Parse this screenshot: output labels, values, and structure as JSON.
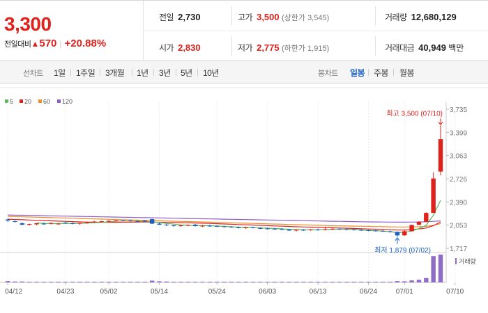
{
  "quote": {
    "price": "3,300",
    "change_label": "전일대비",
    "change_arrow": "▲",
    "change_value": "570",
    "change_pct": "+20.88%",
    "prev_close_label": "전일",
    "prev_close": "2,730",
    "open_label": "시가",
    "open": "2,830",
    "high_label": "고가",
    "high": "3,500",
    "upper_limit": "(상한가 3,545)",
    "low_label": "저가",
    "low": "2,775",
    "lower_limit": "(하한가 1,915)",
    "volume_label": "거래량",
    "volume": "12,680,129",
    "amount_label": "거래대금",
    "amount": "40,949",
    "amount_unit": "백만"
  },
  "tabs": {
    "period_label": "선차트",
    "periods": [
      "1일",
      "1주일",
      "3개월",
      "1년",
      "3년",
      "5년",
      "10년"
    ],
    "candle_label": "봉차트",
    "candles": [
      "일봉",
      "주봉",
      "월봉"
    ],
    "active_candle": "일봉"
  },
  "colors": {
    "up": "#e0221c",
    "down": "#1a5fc2",
    "ma5": "#5cb85c",
    "ma20": "#e0221c",
    "ma60": "#f08c2c",
    "ma120": "#8e5cc7",
    "volume": "#8e6cc7"
  },
  "chart_data": {
    "type": "candlestick",
    "legend": [
      "5",
      "20",
      "60",
      "120"
    ],
    "y_ticks": [
      "3,735",
      "3,399",
      "3,063",
      "2,726",
      "2,390",
      "2,053",
      "1,717"
    ],
    "y_tick_values": [
      3735,
      3399,
      3063,
      2726,
      2390,
      2053,
      1717
    ],
    "x_ticks": [
      {
        "label": "04/12",
        "index": 0
      },
      {
        "label": "04/23",
        "index": 8
      },
      {
        "label": "05/02",
        "index": 14
      },
      {
        "label": "05/14",
        "index": 21
      },
      {
        "label": "05/24",
        "index": 29
      },
      {
        "label": "06/03",
        "index": 36
      },
      {
        "label": "06/13",
        "index": 43
      },
      {
        "label": "06/24",
        "index": 50
      },
      {
        "label": "07/01",
        "index": 55
      },
      {
        "label": "07/10",
        "index": 62
      }
    ],
    "high_note": "최고 3,500 (07/10)",
    "low_note": "최저 1,879 (07/02)",
    "volume_label": "거래량",
    "candles": [
      {
        "o": 2135,
        "h": 2150,
        "l": 2100,
        "c": 2120
      },
      {
        "o": 2110,
        "h": 2125,
        "l": 2090,
        "c": 2100
      },
      {
        "o": 2080,
        "h": 2095,
        "l": 2050,
        "c": 2060
      },
      {
        "o": 2060,
        "h": 2075,
        "l": 2045,
        "c": 2070
      },
      {
        "o": 2065,
        "h": 2085,
        "l": 2050,
        "c": 2080
      },
      {
        "o": 2075,
        "h": 2090,
        "l": 2060,
        "c": 2070
      },
      {
        "o": 2080,
        "h": 2095,
        "l": 2065,
        "c": 2085
      },
      {
        "o": 2070,
        "h": 2085,
        "l": 2060,
        "c": 2075
      },
      {
        "o": 2090,
        "h": 2105,
        "l": 2075,
        "c": 2080
      },
      {
        "o": 2080,
        "h": 2095,
        "l": 2065,
        "c": 2075
      },
      {
        "o": 2075,
        "h": 2090,
        "l": 2060,
        "c": 2085
      },
      {
        "o": 2090,
        "h": 2105,
        "l": 2075,
        "c": 2095
      },
      {
        "o": 2095,
        "h": 2115,
        "l": 2085,
        "c": 2105
      },
      {
        "o": 2100,
        "h": 2115,
        "l": 2090,
        "c": 2110
      },
      {
        "o": 2110,
        "h": 2125,
        "l": 2100,
        "c": 2115
      },
      {
        "o": 2115,
        "h": 2130,
        "l": 2105,
        "c": 2120
      },
      {
        "o": 2120,
        "h": 2130,
        "l": 2110,
        "c": 2118
      },
      {
        "o": 2120,
        "h": 2135,
        "l": 2105,
        "c": 2110
      },
      {
        "o": 2110,
        "h": 2125,
        "l": 2095,
        "c": 2100
      },
      {
        "o": 2120,
        "h": 2130,
        "l": 2095,
        "c": 2105
      },
      {
        "o": 2140,
        "h": 2145,
        "l": 2070,
        "c": 2075
      },
      {
        "o": 2075,
        "h": 2090,
        "l": 2055,
        "c": 2060
      },
      {
        "o": 2060,
        "h": 2075,
        "l": 2040,
        "c": 2050
      },
      {
        "o": 2050,
        "h": 2060,
        "l": 2030,
        "c": 2045
      },
      {
        "o": 2045,
        "h": 2060,
        "l": 2030,
        "c": 2050
      },
      {
        "o": 2050,
        "h": 2065,
        "l": 2040,
        "c": 2055
      },
      {
        "o": 2060,
        "h": 2070,
        "l": 2035,
        "c": 2040
      },
      {
        "o": 2040,
        "h": 2055,
        "l": 2025,
        "c": 2045
      },
      {
        "o": 2045,
        "h": 2060,
        "l": 2030,
        "c": 2035
      },
      {
        "o": 2040,
        "h": 2050,
        "l": 2025,
        "c": 2030
      },
      {
        "o": 2035,
        "h": 2045,
        "l": 2020,
        "c": 2025
      },
      {
        "o": 2030,
        "h": 2040,
        "l": 2015,
        "c": 2020
      },
      {
        "o": 2020,
        "h": 2035,
        "l": 2005,
        "c": 2010
      },
      {
        "o": 2015,
        "h": 2030,
        "l": 2000,
        "c": 2020
      },
      {
        "o": 2020,
        "h": 2030,
        "l": 2005,
        "c": 2010
      },
      {
        "o": 2010,
        "h": 2025,
        "l": 1995,
        "c": 2005
      },
      {
        "o": 2005,
        "h": 2020,
        "l": 1990,
        "c": 2000
      },
      {
        "o": 2000,
        "h": 2015,
        "l": 1985,
        "c": 1995
      },
      {
        "o": 1995,
        "h": 2010,
        "l": 1980,
        "c": 1990
      },
      {
        "o": 1990,
        "h": 2000,
        "l": 1970,
        "c": 1975
      },
      {
        "o": 1975,
        "h": 1990,
        "l": 1960,
        "c": 1985
      },
      {
        "o": 1985,
        "h": 1995,
        "l": 1970,
        "c": 1980
      },
      {
        "o": 1980,
        "h": 1995,
        "l": 1970,
        "c": 1990
      },
      {
        "o": 1990,
        "h": 2005,
        "l": 1975,
        "c": 1985
      },
      {
        "o": 1985,
        "h": 2030,
        "l": 1975,
        "c": 1995
      },
      {
        "o": 1995,
        "h": 2010,
        "l": 1985,
        "c": 2000
      },
      {
        "o": 2000,
        "h": 2010,
        "l": 1985,
        "c": 1990
      },
      {
        "o": 1995,
        "h": 2005,
        "l": 1980,
        "c": 1988
      },
      {
        "o": 1990,
        "h": 2000,
        "l": 1975,
        "c": 1982
      },
      {
        "o": 1985,
        "h": 1995,
        "l": 1970,
        "c": 1978
      },
      {
        "o": 1980,
        "h": 1990,
        "l": 1965,
        "c": 1972
      },
      {
        "o": 1975,
        "h": 1985,
        "l": 1960,
        "c": 1968
      },
      {
        "o": 1970,
        "h": 1985,
        "l": 1955,
        "c": 1962
      },
      {
        "o": 1965,
        "h": 1975,
        "l": 1945,
        "c": 1955
      },
      {
        "o": 1955,
        "h": 1960,
        "l": 1879,
        "c": 1905
      },
      {
        "o": 1905,
        "h": 1980,
        "l": 1900,
        "c": 1965
      },
      {
        "o": 1965,
        "h": 2060,
        "l": 1960,
        "c": 2055
      },
      {
        "o": 2060,
        "h": 2110,
        "l": 2050,
        "c": 2100
      },
      {
        "o": 2100,
        "h": 2240,
        "l": 2095,
        "c": 2230
      },
      {
        "o": 2230,
        "h": 2820,
        "l": 2230,
        "c": 2730
      },
      {
        "o": 2830,
        "h": 3500,
        "l": 2775,
        "c": 3300
      }
    ],
    "volume_values": [
      0.6,
      0.4,
      0.4,
      0.3,
      0.3,
      0.3,
      0.3,
      0.3,
      0.3,
      0.3,
      0.3,
      0.3,
      0.3,
      0.3,
      0.3,
      0.3,
      0.3,
      0.3,
      0.3,
      0.3,
      0.8,
      0.5,
      0.4,
      0.3,
      0.3,
      0.3,
      0.3,
      0.3,
      0.3,
      0.3,
      0.3,
      0.3,
      0.3,
      0.3,
      0.3,
      0.3,
      0.3,
      0.3,
      0.3,
      0.3,
      0.3,
      0.3,
      0.3,
      0.3,
      0.3,
      0.3,
      0.3,
      0.3,
      0.3,
      0.3,
      0.3,
      0.3,
      0.3,
      0.3,
      0.6,
      0.5,
      0.9,
      1.2,
      2.0,
      12.0,
      12.7
    ],
    "ma5": [
      null,
      null,
      null,
      null,
      2085,
      2079,
      2074,
      2076,
      2078,
      2077,
      2079,
      2082,
      2088,
      2092,
      2102,
      2109,
      2114,
      2114,
      2113,
      2111,
      2102,
      2091,
      2078,
      2068,
      2056,
      2050,
      2047,
      2047,
      2045,
      2041,
      2035,
      2030,
      2024,
      2021,
      2017,
      2013,
      2009,
      2006,
      2000,
      1993,
      1989,
      1985,
      1984,
      1982,
      1987,
      1990,
      1992,
      1992,
      1988,
      1984,
      1978,
      1972,
      1967,
      1958,
      1945,
      1949,
      1968,
      2004,
      2051,
      2197,
      2413
    ],
    "ma20": [
      2140,
      2136,
      2132,
      2128,
      2124,
      2120,
      2116,
      2112,
      2108,
      2104,
      2100,
      2097,
      2095,
      2094,
      2094,
      2094,
      2095,
      2096,
      2097,
      2098,
      2097,
      2095,
      2093,
      2091,
      2089,
      2087,
      2084,
      2081,
      2078,
      2074,
      2070,
      2066,
      2062,
      2058,
      2054,
      2050,
      2046,
      2042,
      2038,
      2034,
      2030,
      2027,
      2024,
      2021,
      2018,
      2015,
      2012,
      2009,
      2006,
      2002,
      1998,
      1994,
      1990,
      1986,
      1982,
      1982,
      1988,
      1998,
      2012,
      2045,
      2100
    ],
    "ma60": [
      2180,
      2177,
      2174,
      2171,
      2168,
      2165,
      2162,
      2159,
      2156,
      2153,
      2150,
      2147,
      2144,
      2141,
      2138,
      2135,
      2132,
      2129,
      2126,
      2123,
      2120,
      2117,
      2114,
      2111,
      2108,
      2105,
      2102,
      2099,
      2096,
      2093,
      2090,
      2087,
      2084,
      2081,
      2078,
      2075,
      2072,
      2069,
      2066,
      2063,
      2060,
      2057,
      2054,
      2051,
      2048,
      2045,
      2043,
      2041,
      2039,
      2037,
      2035,
      2033,
      2031,
      2029,
      2027,
      2026,
      2027,
      2030,
      2036,
      2050,
      2075
    ],
    "ma120": [
      2200,
      2198,
      2196,
      2194,
      2192,
      2190,
      2188,
      2186,
      2184,
      2182,
      2180,
      2178,
      2176,
      2174,
      2172,
      2170,
      2168,
      2166,
      2164,
      2162,
      2160,
      2158,
      2156,
      2154,
      2152,
      2150,
      2148,
      2146,
      2144,
      2142,
      2140,
      2138,
      2136,
      2134,
      2132,
      2130,
      2128,
      2126,
      2124,
      2122,
      2120,
      2118,
      2116,
      2114,
      2112,
      2110,
      2108,
      2106,
      2104,
      2102,
      2100,
      2099,
      2098,
      2097,
      2096,
      2096,
      2097,
      2099,
      2102,
      2108,
      2115
    ]
  }
}
